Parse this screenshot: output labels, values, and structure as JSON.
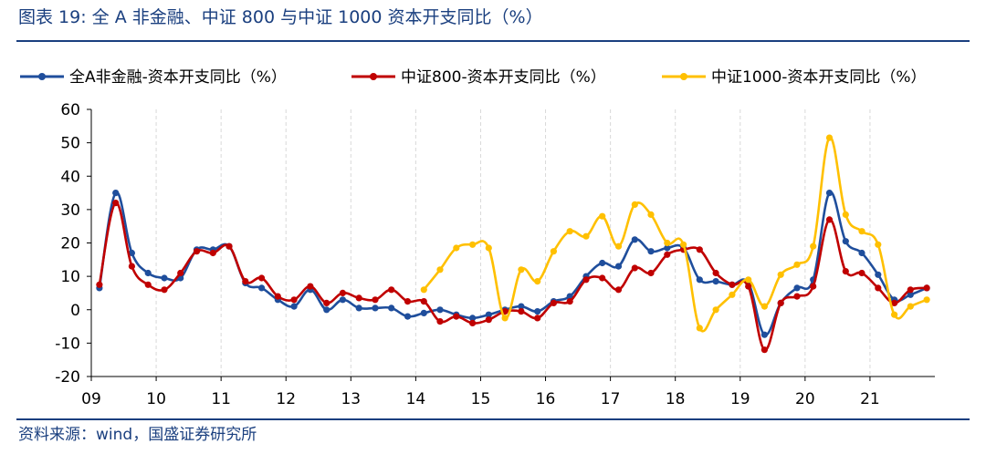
{
  "figure_title": "图表 19:  全 A 非金融、中证 800 与中证 1000  资本开支同比（%）",
  "source_note": "资料来源：wind，国盛证券研究所",
  "colors": {
    "title": "#1a3f7f",
    "grid": "#d9d9d9"
  },
  "chart_data": {
    "type": "line",
    "title": "",
    "xlabel": "",
    "ylabel": "",
    "ylim": [
      -20,
      60
    ],
    "yticks": [
      60,
      50,
      40,
      30,
      20,
      10,
      0,
      -10,
      -20
    ],
    "year_ticks": [
      "09",
      "10",
      "11",
      "12",
      "13",
      "14",
      "15",
      "16",
      "17",
      "18",
      "19",
      "20",
      "21"
    ],
    "grid": "vertical dashed at year ticks",
    "legend_position": "top",
    "x": [
      "2009Q1",
      "2009Q2",
      "2009Q3",
      "2009Q4",
      "2010Q1",
      "2010Q2",
      "2010Q3",
      "2010Q4",
      "2011Q1",
      "2011Q2",
      "2011Q3",
      "2011Q4",
      "2012Q1",
      "2012Q2",
      "2012Q3",
      "2012Q4",
      "2013Q1",
      "2013Q2",
      "2013Q3",
      "2013Q4",
      "2014Q1",
      "2014Q2",
      "2014Q3",
      "2014Q4",
      "2015Q1",
      "2015Q2",
      "2015Q3",
      "2015Q4",
      "2016Q1",
      "2016Q2",
      "2016Q3",
      "2016Q4",
      "2017Q1",
      "2017Q2",
      "2017Q3",
      "2017Q4",
      "2018Q1",
      "2018Q2",
      "2018Q3",
      "2018Q4",
      "2019Q1",
      "2019Q2",
      "2019Q3",
      "2019Q4",
      "2020Q1",
      "2020Q2",
      "2020Q3",
      "2020Q4",
      "2021Q1",
      "2021Q2",
      "2021Q3",
      "2021Q4"
    ],
    "series": [
      {
        "name": "全A非金融-资本开支同比（%）",
        "color": "#1f4e9c",
        "values": [
          6.5,
          35,
          17,
          11,
          9.5,
          9.5,
          18,
          18,
          19,
          8,
          6.5,
          3,
          1,
          6,
          0,
          3,
          0.5,
          0.5,
          0.5,
          -2,
          -1,
          0,
          -1.5,
          -2.5,
          -1.5,
          0,
          1,
          -0.5,
          2.5,
          4,
          10,
          14,
          13,
          21,
          17.5,
          18.5,
          18.5,
          9,
          8.5,
          7.5,
          8,
          -7.5,
          2,
          6.5,
          9,
          35,
          20.5,
          17,
          10.5,
          3,
          4.5,
          6.5
        ]
      },
      {
        "name": "中证800-资本开支同比（%）",
        "color": "#c00000",
        "values": [
          7.5,
          32,
          13,
          7.5,
          6,
          11,
          17.5,
          17,
          19,
          8.5,
          9.5,
          4,
          3,
          7,
          2,
          5,
          3.5,
          3,
          6,
          2.5,
          2.5,
          -3.5,
          -2,
          -4,
          -3,
          -0.5,
          -0.5,
          -2.5,
          2,
          2.5,
          9,
          9.5,
          6,
          12.5,
          11,
          16.5,
          18,
          18,
          11,
          7.5,
          7,
          -12,
          2,
          4,
          7,
          27,
          11.5,
          11,
          6.5,
          2,
          6,
          6.5
        ]
      },
      {
        "name": "中证1000-资本开支同比（%）",
        "color": "#ffc000",
        "values": [
          null,
          null,
          null,
          null,
          null,
          null,
          null,
          null,
          null,
          null,
          null,
          null,
          null,
          null,
          null,
          null,
          null,
          null,
          null,
          null,
          6,
          12,
          18.5,
          19.5,
          18.5,
          -2.5,
          12,
          8.5,
          17.5,
          23.5,
          22,
          28,
          19,
          31.5,
          28.5,
          20,
          19.5,
          -5.5,
          0,
          4.5,
          9,
          1,
          10.5,
          13.5,
          19,
          51.5,
          28.5,
          23.5,
          19.5,
          -1.5,
          1,
          3
        ]
      }
    ]
  }
}
